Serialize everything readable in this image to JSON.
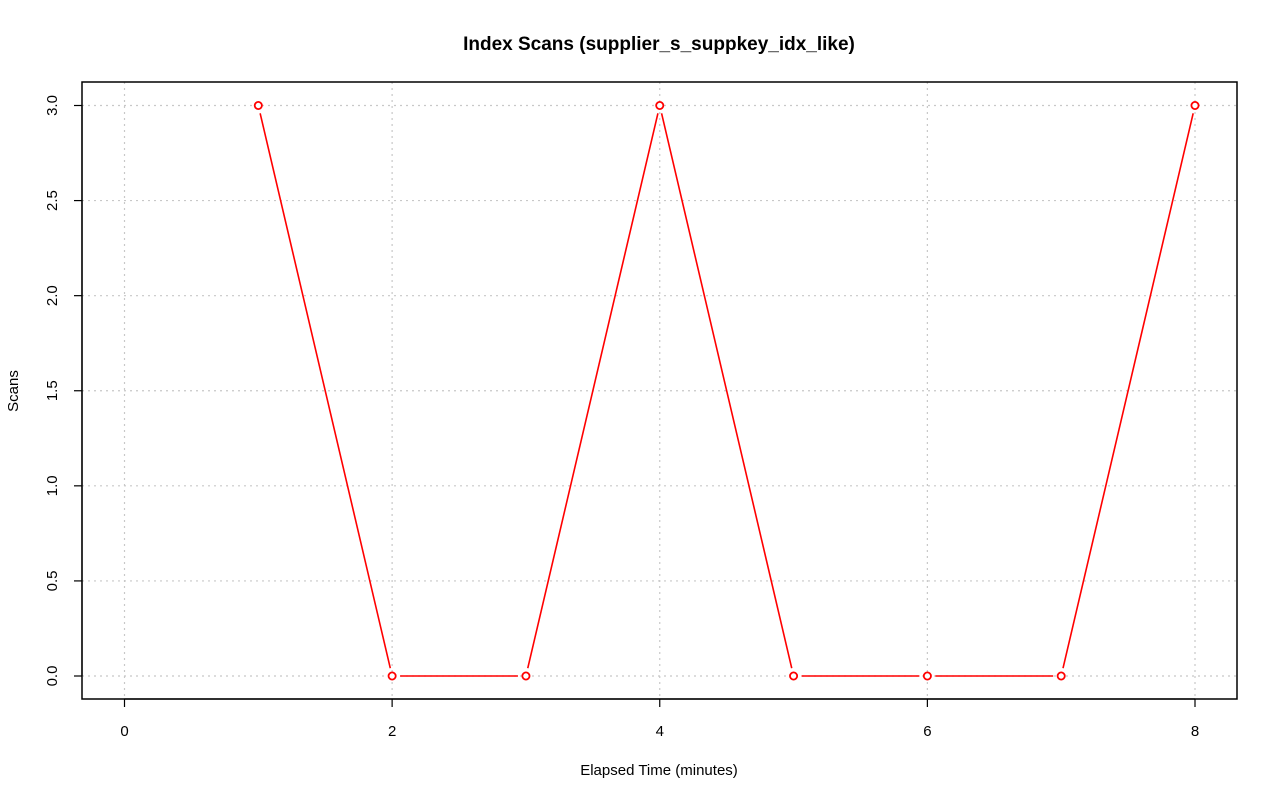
{
  "chart_data": {
    "type": "line",
    "title": "Index Scans (supplier_s_suppkey_idx_like)",
    "xlabel": "Elapsed Time (minutes)",
    "ylabel": "Scans",
    "xlim": [
      0,
      8
    ],
    "ylim": [
      0,
      3
    ],
    "x_ticks": [
      0,
      2,
      4,
      6,
      8
    ],
    "y_ticks": [
      0,
      0.5,
      1,
      1.5,
      2,
      2.5,
      3
    ],
    "x_tick_labels": [
      "0",
      "2",
      "4",
      "6",
      "8"
    ],
    "y_tick_labels": [
      "0.0",
      "0.5",
      "1.0",
      "1.5",
      "2.0",
      "2.5",
      "3.0"
    ],
    "grid": true,
    "series": [
      {
        "color": "#ff0000",
        "marker": "open-circle",
        "x": [
          1,
          2,
          3,
          4,
          5,
          6,
          7,
          8
        ],
        "y": [
          3,
          0,
          0,
          3,
          0,
          0,
          0,
          3
        ]
      }
    ]
  }
}
